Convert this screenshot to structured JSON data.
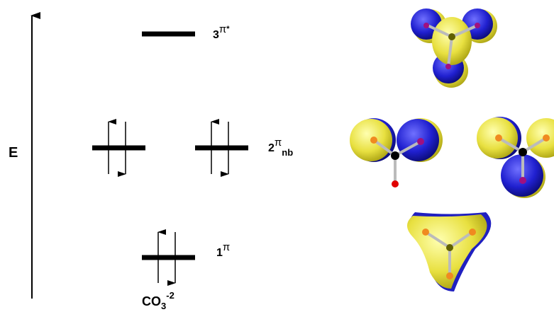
{
  "axis_label": "E",
  "levels": [
    {
      "number": "3",
      "symbol": "π",
      "superscript": "*"
    },
    {
      "number": "2",
      "symbol": "π",
      "subscript": "nb"
    },
    {
      "number": "1",
      "symbol": "π"
    }
  ],
  "molecule": {
    "name": "CO",
    "subscript": "3",
    "superscript": "-2"
  }
}
